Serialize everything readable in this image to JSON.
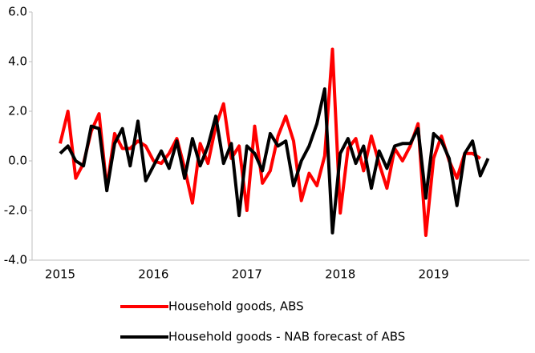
{
  "chart_data": {
    "type": "line",
    "categories": [
      "2015",
      null,
      null,
      null,
      null,
      null,
      null,
      null,
      null,
      null,
      null,
      null,
      "2016",
      null,
      null,
      null,
      null,
      null,
      null,
      null,
      null,
      null,
      null,
      null,
      "2017",
      null,
      null,
      null,
      null,
      null,
      null,
      null,
      null,
      null,
      null,
      null,
      "2018",
      null,
      null,
      null,
      null,
      null,
      null,
      null,
      null,
      null,
      null,
      null,
      "2019",
      null,
      null,
      null,
      null,
      null,
      null,
      null
    ],
    "series": [
      {
        "name": "Household goods, ABS",
        "color": "#ff0000",
        "values": [
          0.7,
          2.0,
          -0.7,
          -0.1,
          1.2,
          1.9,
          -1.1,
          1.1,
          0.5,
          0.5,
          0.8,
          0.6,
          0.0,
          -0.1,
          0.3,
          0.9,
          -0.3,
          -1.7,
          0.7,
          -0.1,
          1.4,
          2.3,
          0.1,
          0.6,
          -2.0,
          1.4,
          -0.9,
          -0.4,
          1.0,
          1.8,
          0.8,
          -1.6,
          -0.5,
          -1.0,
          0.2,
          4.5,
          -2.1,
          0.5,
          0.9,
          -0.4,
          1.0,
          -0.1,
          -1.1,
          0.5,
          0.0,
          0.6,
          1.5,
          -3.0,
          0.1,
          1.0,
          0.0,
          -0.7,
          0.3,
          0.3,
          0.1,
          null
        ]
      },
      {
        "name": "Household goods - NAB forecast of ABS",
        "color": "#000000",
        "values": [
          0.3,
          0.6,
          0.0,
          -0.2,
          1.4,
          1.3,
          -1.2,
          0.7,
          1.3,
          -0.2,
          1.6,
          -0.8,
          -0.2,
          0.4,
          -0.3,
          0.8,
          -0.7,
          0.9,
          -0.2,
          0.6,
          1.8,
          -0.1,
          0.7,
          -2.2,
          0.6,
          0.3,
          -0.4,
          1.1,
          0.6,
          0.8,
          -1.0,
          0.0,
          0.6,
          1.5,
          2.9,
          -2.9,
          0.3,
          0.9,
          -0.1,
          0.6,
          -1.1,
          0.4,
          -0.3,
          0.6,
          0.7,
          0.7,
          1.3,
          -1.5,
          1.1,
          0.8,
          0.1,
          -1.8,
          0.3,
          0.8,
          -0.6,
          0.1
        ]
      }
    ],
    "ylim": [
      -4,
      6
    ],
    "yticks": [
      {
        "value": -4,
        "label": "-4.0"
      },
      {
        "value": -2,
        "label": "-2.0"
      },
      {
        "value": 0,
        "label": "0.0"
      },
      {
        "value": 2,
        "label": "2.0"
      },
      {
        "value": 4,
        "label": "4.0"
      },
      {
        "value": 6,
        "label": "6.0"
      }
    ],
    "grid": false
  }
}
